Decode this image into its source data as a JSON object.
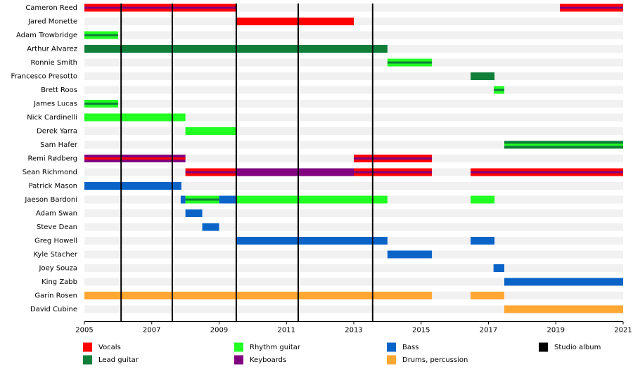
{
  "chart_data": {
    "type": "timeline",
    "xlim": [
      2005,
      2021
    ],
    "xticks": [
      2005,
      2007,
      2009,
      2011,
      2013,
      2015,
      2017,
      2019,
      2021
    ],
    "series": [
      {
        "name": "Vocals",
        "color": "#ff0000"
      },
      {
        "name": "Lead guitar",
        "color": "#0f7f3a"
      },
      {
        "name": "Rhythm guitar",
        "color": "#22ff22"
      },
      {
        "name": "Keyboards",
        "color": "#800080"
      },
      {
        "name": "Bass",
        "color": "#0a64c8"
      },
      {
        "name": "Drums, percussion",
        "color": "#ffa733"
      }
    ],
    "albums": {
      "name": "Studio album",
      "color": "#000000",
      "values": [
        2006.09,
        2007.61,
        2009.51,
        2011.35,
        2013.56
      ]
    },
    "members": [
      {
        "name": "Cameron Reed",
        "periods": [
          {
            "role": "Vocals",
            "stripe": "Keyboards",
            "start": 2005,
            "end": 2009.5
          },
          {
            "role": "Vocals",
            "stripe": "Keyboards",
            "start": 2019.12,
            "end": 2021
          }
        ]
      },
      {
        "name": "Jared Monette",
        "periods": [
          {
            "role": "Vocals",
            "start": 2009.5,
            "end": 2013.0
          }
        ]
      },
      {
        "name": "Adam Trowbridge",
        "periods": [
          {
            "role": "Rhythm guitar",
            "stripe": "Lead guitar",
            "start": 2005,
            "end": 2006.0
          }
        ]
      },
      {
        "name": "Arthur Alvarez",
        "periods": [
          {
            "role": "Lead guitar",
            "start": 2005,
            "end": 2014.0
          }
        ]
      },
      {
        "name": "Ronnie Smith",
        "periods": [
          {
            "role": "Rhythm guitar",
            "stripe": "Lead guitar",
            "start": 2014.0,
            "end": 2015.32
          }
        ]
      },
      {
        "name": "Francesco Presotto",
        "periods": [
          {
            "role": "Lead guitar",
            "start": 2016.47,
            "end": 2017.18
          }
        ]
      },
      {
        "name": "Brett Roos",
        "periods": [
          {
            "role": "Rhythm guitar",
            "stripe": "Lead guitar",
            "start": 2017.16,
            "end": 2017.47
          }
        ]
      },
      {
        "name": "James Lucas",
        "periods": [
          {
            "role": "Rhythm guitar",
            "stripe": "Lead guitar",
            "start": 2005,
            "end": 2006.0
          }
        ]
      },
      {
        "name": "Nick Cardinelli",
        "periods": [
          {
            "role": "Rhythm guitar",
            "start": 2005,
            "end": 2008.0
          }
        ]
      },
      {
        "name": "Derek Yarra",
        "periods": [
          {
            "role": "Rhythm guitar",
            "start": 2008.0,
            "end": 2009.5
          }
        ]
      },
      {
        "name": "Sam Hafer",
        "periods": [
          {
            "role": "Lead guitar",
            "stripe": "Rhythm guitar",
            "start": 2017.47,
            "end": 2021
          }
        ]
      },
      {
        "name": "Remi Rødberg",
        "periods": [
          {
            "role": "Keyboards",
            "stripe": "Vocals",
            "start": 2005,
            "end": 2008.0
          },
          {
            "role": "Vocals",
            "stripe": "Keyboards",
            "start": 2013.0,
            "end": 2015.32
          }
        ]
      },
      {
        "name": "Sean Richmond",
        "periods": [
          {
            "role": "Vocals",
            "stripe": "Keyboards",
            "start": 2008.0,
            "end": 2009.5
          },
          {
            "role": "Keyboards",
            "start": 2009.5,
            "end": 2013.0
          },
          {
            "role": "Vocals",
            "stripe": "Keyboards",
            "start": 2013.0,
            "end": 2015.32
          },
          {
            "role": "Vocals",
            "stripe": "Keyboards",
            "start": 2016.47,
            "end": 2021
          }
        ]
      },
      {
        "name": "Patrick Mason",
        "periods": [
          {
            "role": "Bass",
            "start": 2005,
            "end": 2007.88
          }
        ]
      },
      {
        "name": "Jaeson Bardoni",
        "periods": [
          {
            "role": "Bass",
            "start": 2007.86,
            "end": 2008.0
          },
          {
            "role": "Rhythm guitar",
            "stripe": "Lead guitar",
            "start": 2008.0,
            "end": 2009.0
          },
          {
            "role": "Bass",
            "start": 2009.0,
            "end": 2009.5
          },
          {
            "role": "Rhythm guitar",
            "start": 2009.5,
            "end": 2014.0
          },
          {
            "role": "Rhythm guitar",
            "start": 2016.47,
            "end": 2017.18
          }
        ]
      },
      {
        "name": "Adam Swan",
        "periods": [
          {
            "role": "Bass",
            "start": 2008.0,
            "end": 2008.5
          }
        ]
      },
      {
        "name": "Steve Dean",
        "periods": [
          {
            "role": "Bass",
            "start": 2008.5,
            "end": 2009.0
          }
        ]
      },
      {
        "name": "Greg Howell",
        "periods": [
          {
            "role": "Bass",
            "start": 2009.5,
            "end": 2014.0
          },
          {
            "role": "Bass",
            "start": 2016.47,
            "end": 2017.18
          }
        ]
      },
      {
        "name": "Kyle Stacher",
        "periods": [
          {
            "role": "Bass",
            "start": 2014.0,
            "end": 2015.32
          }
        ]
      },
      {
        "name": "Joey Souza",
        "periods": [
          {
            "role": "Bass",
            "start": 2017.15,
            "end": 2017.47
          }
        ]
      },
      {
        "name": "King Zabb",
        "periods": [
          {
            "role": "Bass",
            "start": 2017.47,
            "end": 2021
          }
        ]
      },
      {
        "name": "Garin Rosen",
        "periods": [
          {
            "role": "Drums, percussion",
            "start": 2005,
            "end": 2015.32
          },
          {
            "role": "Drums, percussion",
            "start": 2016.47,
            "end": 2017.47
          }
        ]
      },
      {
        "name": "David Cubine",
        "periods": [
          {
            "role": "Drums, percussion",
            "start": 2017.47,
            "end": 2021
          }
        ]
      }
    ]
  }
}
